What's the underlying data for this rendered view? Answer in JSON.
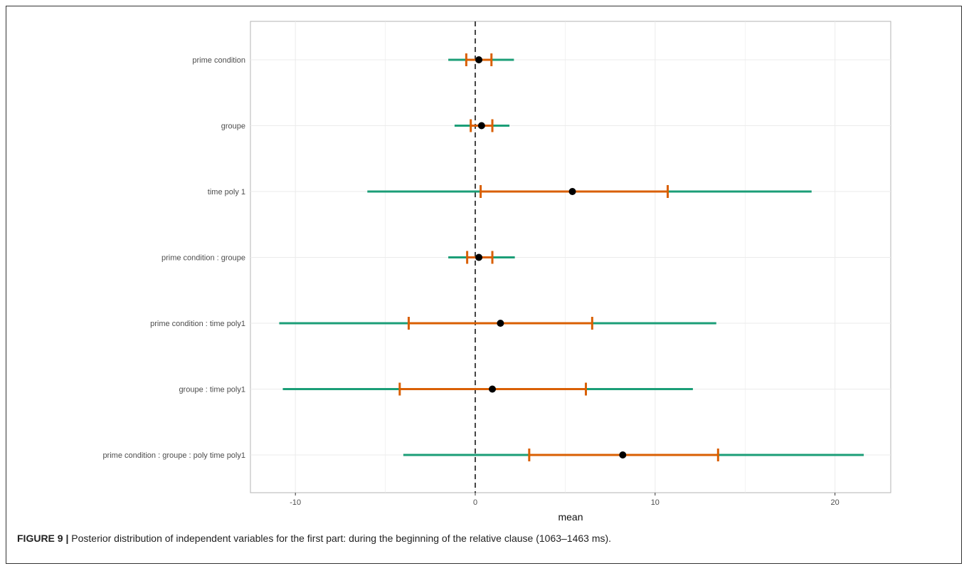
{
  "chart_data": {
    "type": "forest",
    "title": "",
    "xlabel": "mean",
    "ylabel": "",
    "xlim": [
      -12.5,
      23.1
    ],
    "x_ticks": [
      -10,
      0,
      10,
      20
    ],
    "grid": true,
    "reference_line_x": 0,
    "categories": [
      "prime condition",
      "groupe",
      "time poly 1",
      "prime condition : groupe",
      "prime condition : time poly1",
      "groupe : time poly1",
      "prime condition : groupe : poly time poly1"
    ],
    "mean": [
      0.2,
      0.35,
      5.4,
      0.2,
      1.4,
      0.95,
      8.2
    ],
    "inner_interval": [
      [
        -0.5,
        0.9
      ],
      [
        -0.25,
        0.95
      ],
      [
        0.3,
        10.7
      ],
      [
        -0.45,
        0.95
      ],
      [
        -3.7,
        6.5
      ],
      [
        -4.2,
        6.15
      ],
      [
        3.0,
        13.5
      ]
    ],
    "outer_interval": [
      [
        -1.5,
        2.15
      ],
      [
        -1.15,
        1.9
      ],
      [
        -6.0,
        18.7
      ],
      [
        -1.5,
        2.2
      ],
      [
        -10.9,
        13.4
      ],
      [
        -10.7,
        12.1
      ],
      [
        -4.0,
        21.6
      ]
    ],
    "colors": {
      "outer": "#1b9e77",
      "inner": "#d95f02",
      "mean": "#000000",
      "refline": "#444444",
      "grid": "#ebebeb",
      "panel_border": "#b3b3b3"
    }
  },
  "caption": {
    "label": "FIGURE 9 |",
    "text": " Posterior distribution of independent variables for the first part: during the beginning of the relative clause (1063–1463 ms)."
  }
}
